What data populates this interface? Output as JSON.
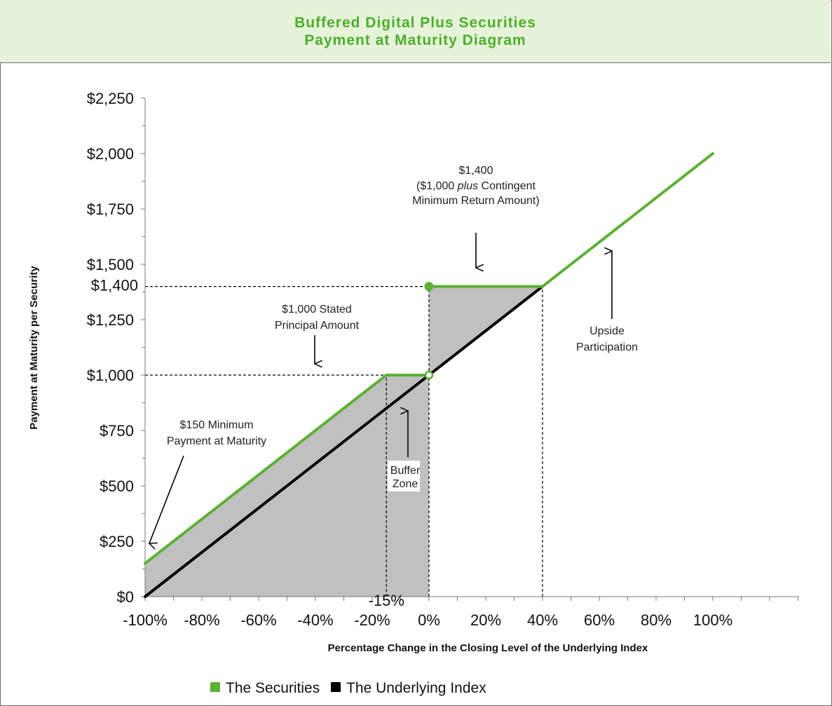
{
  "header": {
    "title_line1": "Buffered Digital Plus Securities",
    "title_line2": "Payment at Maturity Diagram"
  },
  "colors": {
    "securities": "#5cb034",
    "index": "#000000",
    "shade": "#c0c0c0",
    "header_bg": "#e6f2d9",
    "header_text": "#4caf2a"
  },
  "chart_data": {
    "type": "line",
    "xlabel": "Percentage Change in the Closing Level of the Underlying Index",
    "ylabel": "Payment at Maturity per Security",
    "xlim": [
      -100,
      100
    ],
    "ylim": [
      0,
      2250
    ],
    "x_tick_labels": [
      "-100%",
      "-80%",
      "-60%",
      "-40%",
      "-20%",
      "0%",
      "20%",
      "40%",
      "60%",
      "80%",
      "100%"
    ],
    "x_ticks": [
      -100,
      -80,
      -60,
      -40,
      -20,
      0,
      20,
      40,
      60,
      80,
      100
    ],
    "y_tick_labels": [
      "$0",
      "$250",
      "$500",
      "$750",
      "$1,000",
      "$1,250",
      "$1,500",
      "$1,750",
      "$2,000",
      "$2,250"
    ],
    "y_ticks": [
      0,
      250,
      500,
      750,
      1000,
      1250,
      1500,
      1750,
      2000,
      2250
    ],
    "extra_y_label": {
      "value": 1400,
      "label": "$1,400"
    },
    "extra_x_label": {
      "value": -15,
      "label": "-15%"
    },
    "series": [
      {
        "name": "The Securities",
        "color": "#5cb034",
        "segments": [
          {
            "x": [
              -100,
              -15
            ],
            "y": [
              150,
              1000
            ]
          },
          {
            "x": [
              -15,
              0
            ],
            "y": [
              1000,
              1000
            ]
          },
          {
            "x": [
              0,
              40
            ],
            "y": [
              1400,
              1400
            ]
          },
          {
            "x": [
              40,
              100
            ],
            "y": [
              1400,
              2000
            ]
          }
        ],
        "markers": [
          {
            "x": 0,
            "y": 1000,
            "style": "open"
          },
          {
            "x": 0,
            "y": 1400,
            "style": "filled"
          }
        ]
      },
      {
        "name": "The Underlying Index",
        "color": "#000000",
        "x": [
          -100,
          40
        ],
        "y": [
          0,
          1400
        ]
      }
    ],
    "reference_lines": [
      {
        "from": [
          -100,
          1400
        ],
        "to": [
          40,
          1400
        ]
      },
      {
        "from": [
          -100,
          1000
        ],
        "to": [
          -15,
          1000
        ]
      },
      {
        "from": [
          -15,
          0
        ],
        "to": [
          -15,
          1000
        ]
      },
      {
        "from": [
          0,
          0
        ],
        "to": [
          0,
          1400
        ]
      },
      {
        "from": [
          40,
          0
        ],
        "to": [
          40,
          1400
        ]
      }
    ],
    "annotations": [
      {
        "id": "min_payment",
        "lines": [
          "$150 Minimum",
          "Payment at Maturity"
        ]
      },
      {
        "id": "stated_principal",
        "lines": [
          "$1,000 Stated",
          "Principal Amount"
        ]
      },
      {
        "id": "contingent",
        "line1": "$1,400",
        "line2_pre": "($1,000 ",
        "line2_italic": "plus",
        "line2_post": " Contingent",
        "line3": "Minimum Return Amount)"
      },
      {
        "id": "buffer_zone",
        "lines": [
          "Buffer",
          "Zone"
        ]
      },
      {
        "id": "upside",
        "lines": [
          "Upside",
          "Participation"
        ]
      }
    ],
    "legend": {
      "position": "bottom",
      "items": [
        {
          "label": "The Securities",
          "color": "#5cb034"
        },
        {
          "label": "The Underlying Index",
          "color": "#000000"
        }
      ]
    }
  }
}
